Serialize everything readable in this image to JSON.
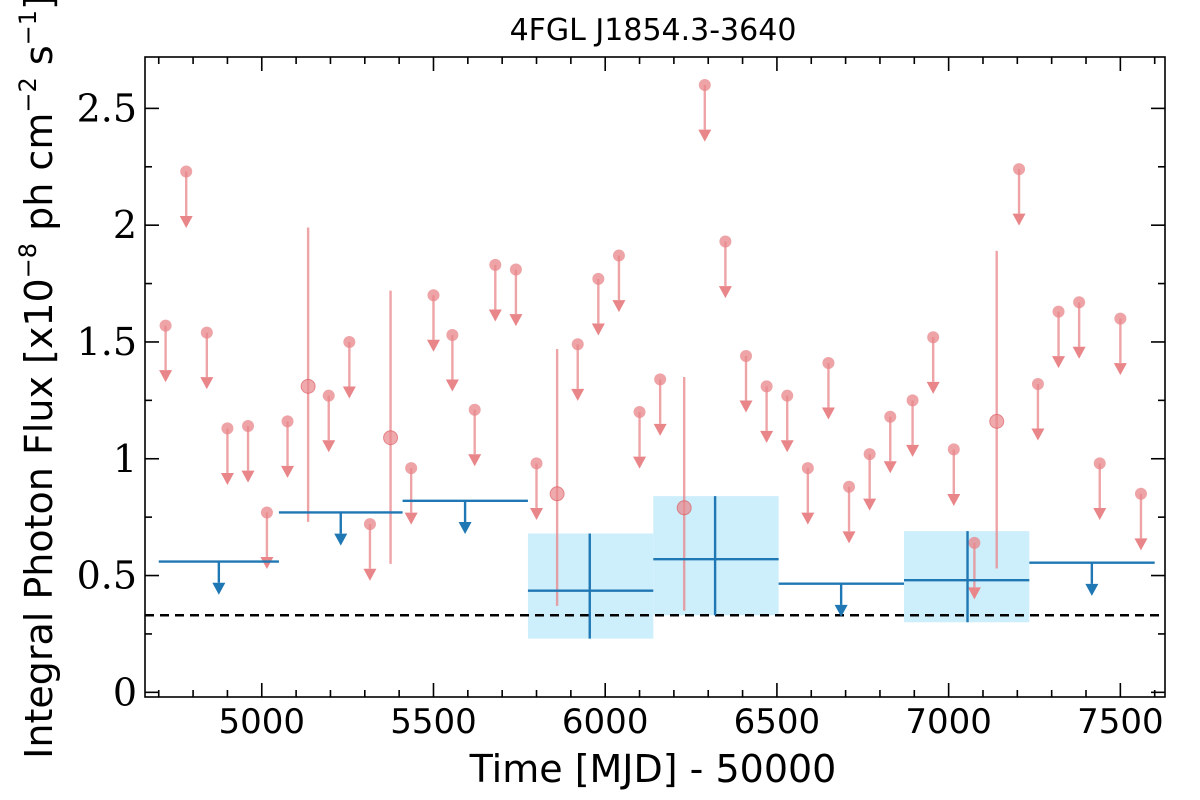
{
  "chart_data": {
    "type": "scatter",
    "title": "4FGL J1854.3-3640",
    "xlabel": "Time [MJD] - 50000",
    "ylabel_prefix": "Integral Photon Flux [x10",
    "ylabel_exp1": "−8",
    "ylabel_mid": " ph cm",
    "ylabel_exp2": "−2",
    "ylabel_mid2": " s",
    "ylabel_exp3": "−1",
    "ylabel_suffix": "]",
    "xlim": [
      4660,
      7630
    ],
    "ylim": [
      -0.02,
      2.72
    ],
    "xticks": [
      5000,
      5500,
      6000,
      6500,
      7000,
      7500
    ],
    "xtick_labels": [
      "5000",
      "5500",
      "6000",
      "6500",
      "7000",
      "7500"
    ],
    "yticks": [
      0,
      0.5,
      1,
      1.5,
      2,
      2.5
    ],
    "ytick_labels": [
      "0",
      "0.5",
      "1",
      "1.5",
      "2",
      "2.5"
    ],
    "grid": false,
    "colors": {
      "monthly": "#e8868a",
      "yearly": "#1f77b4",
      "yearly_band": "#cdeefb",
      "threshold": "#000000"
    },
    "threshold_line": 0.33,
    "series": [
      {
        "role": "monthly_upper_limits",
        "points": [
          [
            4720,
            1.57
          ],
          [
            4780,
            2.23
          ],
          [
            4840,
            1.54
          ],
          [
            4900,
            1.13
          ],
          [
            4960,
            1.14
          ],
          [
            5015,
            0.77
          ],
          [
            5075,
            1.16
          ],
          [
            5195,
            1.27
          ],
          [
            5255,
            1.5
          ],
          [
            5315,
            0.72
          ],
          [
            5435,
            0.96
          ],
          [
            5500,
            1.7
          ],
          [
            5555,
            1.53
          ],
          [
            5620,
            1.21
          ],
          [
            5680,
            1.83
          ],
          [
            5740,
            1.81
          ],
          [
            5800,
            0.98
          ],
          [
            5920,
            1.49
          ],
          [
            5980,
            1.77
          ],
          [
            6040,
            1.87
          ],
          [
            6100,
            1.2
          ],
          [
            6160,
            1.34
          ],
          [
            6290,
            2.6
          ],
          [
            6350,
            1.93
          ],
          [
            6410,
            1.44
          ],
          [
            6470,
            1.31
          ],
          [
            6530,
            1.27
          ],
          [
            6590,
            0.96
          ],
          [
            6650,
            1.41
          ],
          [
            6710,
            0.88
          ],
          [
            6770,
            1.02
          ],
          [
            6830,
            1.18
          ],
          [
            6895,
            1.25
          ],
          [
            6955,
            1.52
          ],
          [
            7015,
            1.04
          ],
          [
            7075,
            0.64
          ],
          [
            7205,
            2.24
          ],
          [
            7260,
            1.32
          ],
          [
            7320,
            1.63
          ],
          [
            7380,
            1.67
          ],
          [
            7440,
            0.98
          ],
          [
            7500,
            1.6
          ],
          [
            7560,
            0.85
          ]
        ]
      },
      {
        "role": "monthly_detections",
        "points": [
          {
            "x": 5135,
            "y": 1.31,
            "ylo": 0.73,
            "yhi": 1.99
          },
          {
            "x": 5375,
            "y": 1.09,
            "ylo": 0.55,
            "yhi": 1.72
          },
          {
            "x": 5860,
            "y": 0.85,
            "ylo": 0.37,
            "yhi": 1.47
          },
          {
            "x": 6230,
            "y": 0.79,
            "ylo": 0.35,
            "yhi": 1.35
          },
          {
            "x": 7140,
            "y": 1.16,
            "ylo": 0.53,
            "yhi": 1.89
          }
        ]
      },
      {
        "role": "yearly_upper_limits",
        "bins": [
          {
            "x0": 4700,
            "x1": 5050,
            "y": 0.56,
            "xc": 4875
          },
          {
            "x0": 5050,
            "x1": 5410,
            "y": 0.77,
            "xc": 5230
          },
          {
            "x0": 5410,
            "x1": 5775,
            "y": 0.82,
            "xc": 5592
          },
          {
            "x0": 6505,
            "x1": 6870,
            "y": 0.465,
            "xc": 6687
          },
          {
            "x0": 7235,
            "x1": 7600,
            "y": 0.555,
            "xc": 7417
          }
        ]
      },
      {
        "role": "yearly_detections",
        "bins": [
          {
            "x0": 5775,
            "x1": 6140,
            "xc": 5955,
            "y": 0.435,
            "ylo": 0.23,
            "yhi": 0.68,
            "band_lo": 0.23,
            "band_hi": 0.68
          },
          {
            "x0": 6140,
            "x1": 6505,
            "xc": 6320,
            "y": 0.57,
            "ylo": 0.33,
            "yhi": 0.84,
            "band_lo": 0.33,
            "band_hi": 0.84
          },
          {
            "x0": 6870,
            "x1": 7235,
            "xc": 7055,
            "y": 0.48,
            "ylo": 0.3,
            "yhi": 0.69,
            "band_lo": 0.3,
            "band_hi": 0.69
          }
        ]
      }
    ]
  }
}
